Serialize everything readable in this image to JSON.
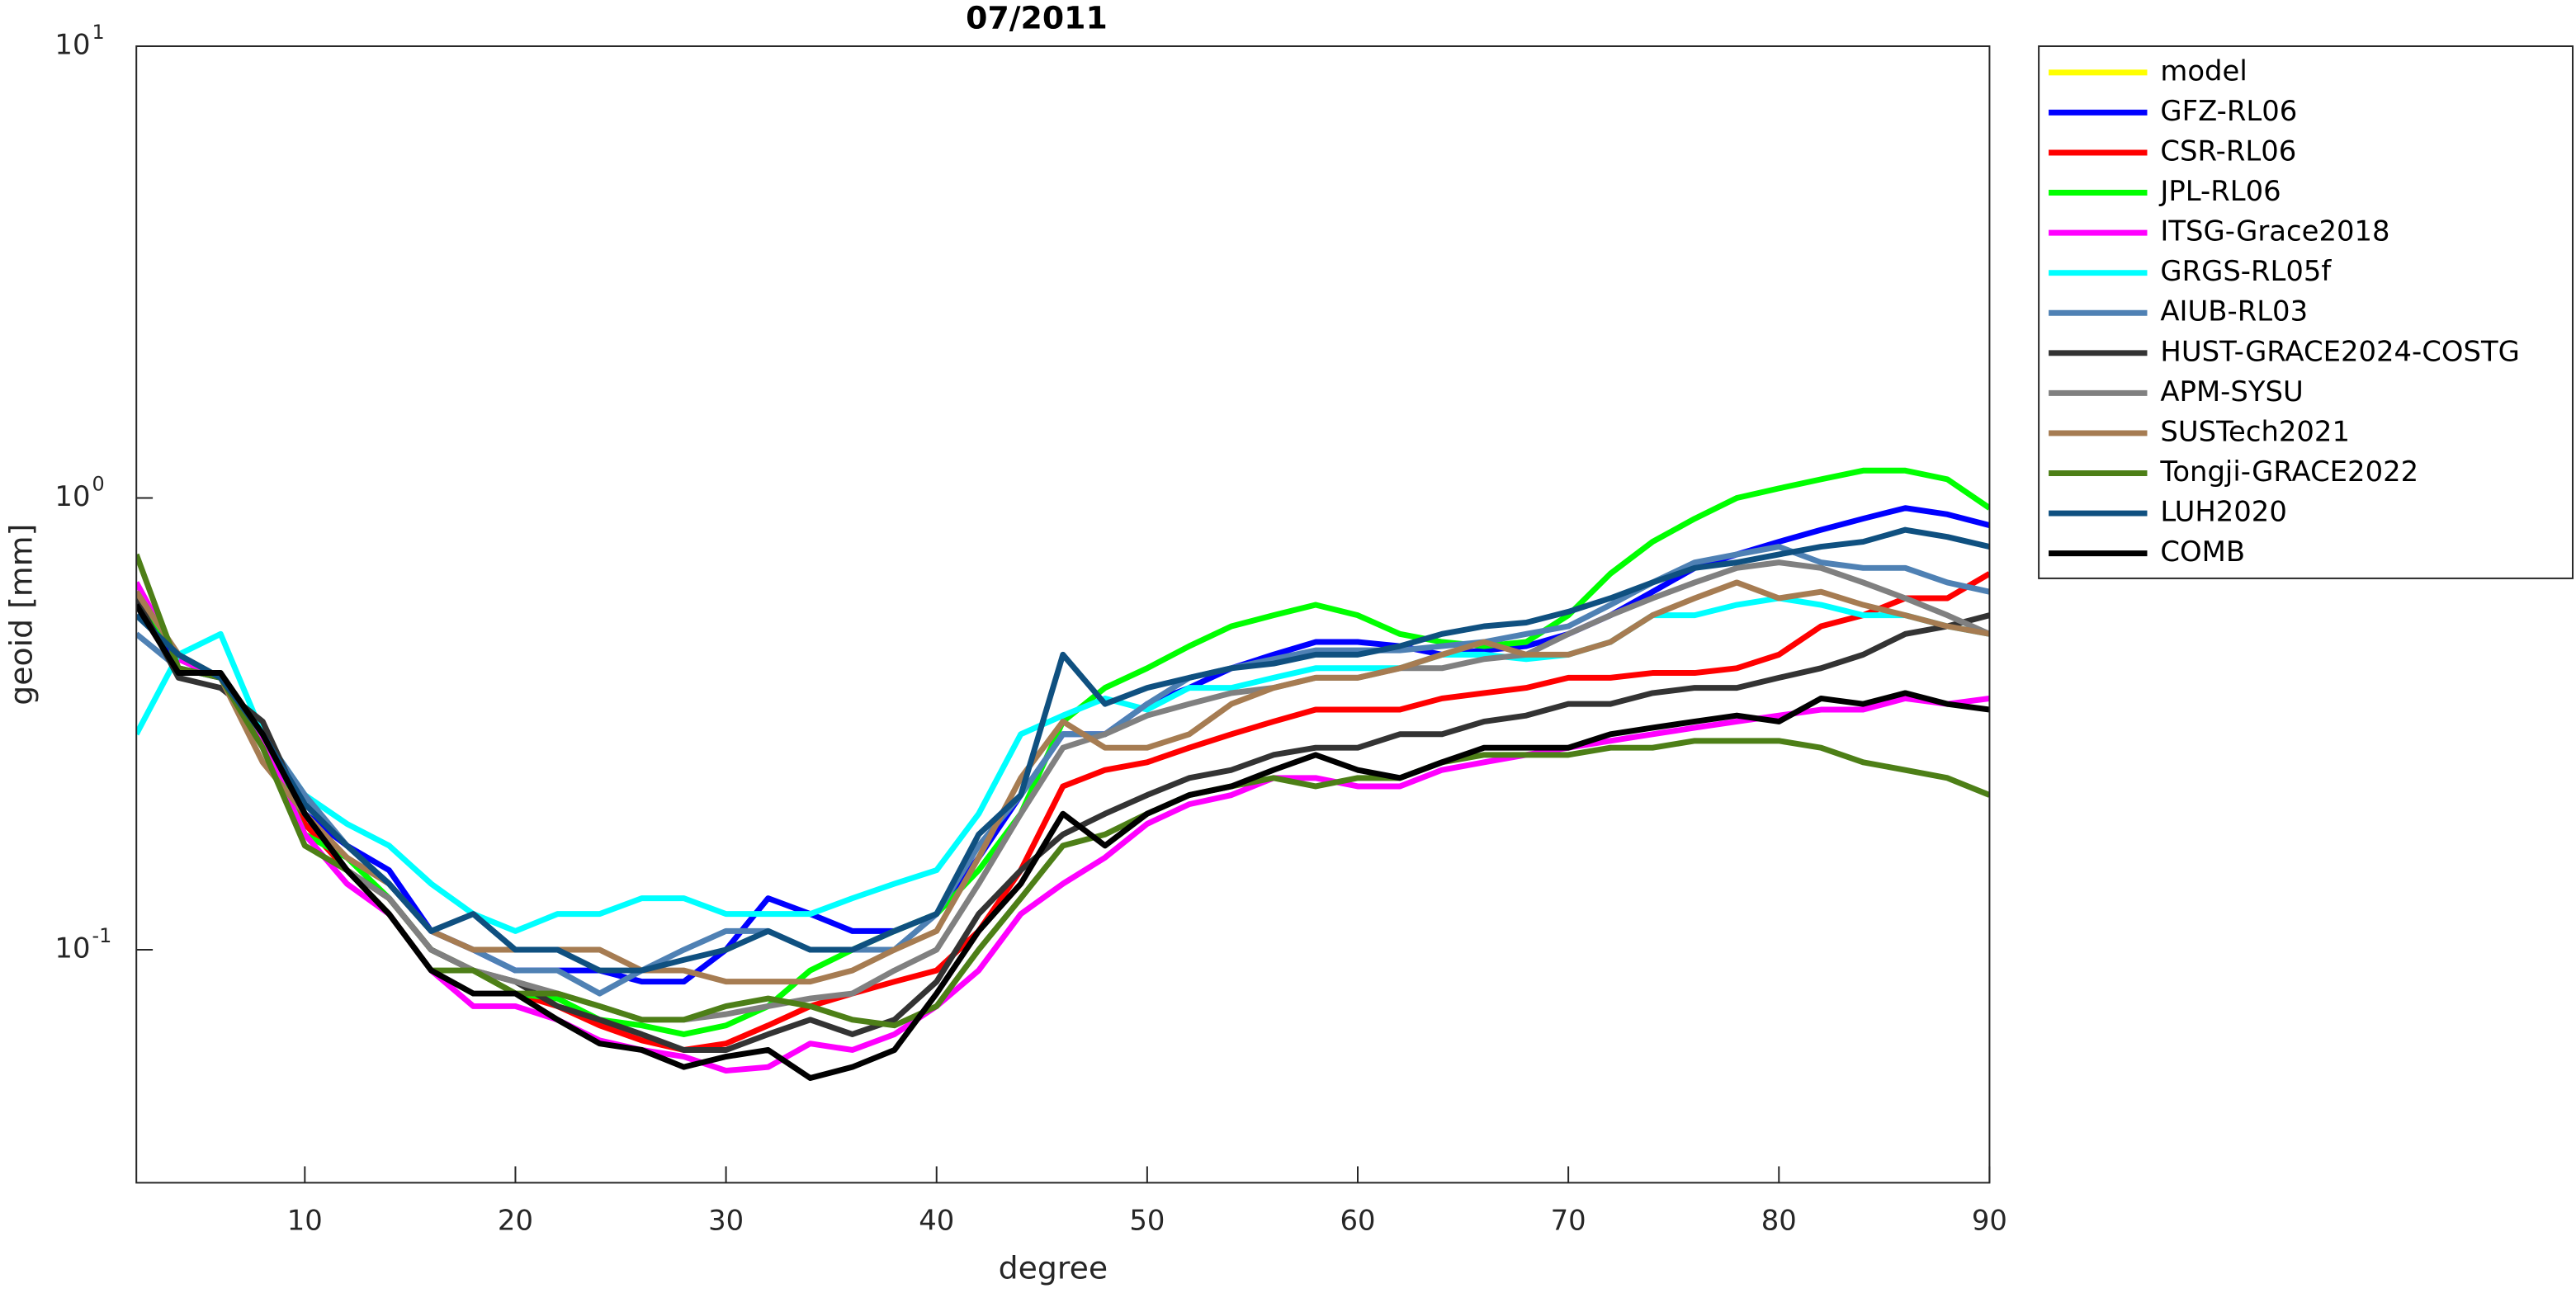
{
  "chart_data": {
    "type": "line",
    "title": "07/2011",
    "xlabel": "degree",
    "ylabel": "geoid [mm]",
    "yscale": "log",
    "legend": "outside-right",
    "grid": false,
    "xlim": [
      2,
      90
    ],
    "xticks": [
      10,
      20,
      30,
      40,
      50,
      60,
      70,
      80,
      90
    ],
    "ylim": [
      0.0305,
      10
    ],
    "yticks": [
      {
        "value": 0.1,
        "label": "10",
        "exponent": "-1"
      },
      {
        "value": 1,
        "label": "10",
        "exponent": "0"
      },
      {
        "value": 10,
        "label": "10",
        "exponent": "1"
      }
    ],
    "x": [
      2,
      4,
      6,
      8,
      10,
      12,
      14,
      16,
      18,
      20,
      22,
      24,
      26,
      28,
      30,
      32,
      34,
      36,
      38,
      40,
      42,
      44,
      46,
      48,
      50,
      52,
      54,
      56,
      58,
      60,
      62,
      64,
      66,
      68,
      70,
      72,
      74,
      76,
      78,
      80,
      82,
      84,
      86,
      88,
      90
    ],
    "series": [
      {
        "name": "model",
        "color": "#ffff00",
        "values": [
          null,
          null,
          null,
          null,
          null,
          null,
          null,
          null,
          null,
          null,
          null,
          null,
          null,
          null,
          null,
          null,
          null,
          null,
          null,
          null,
          null,
          null,
          null,
          null,
          null,
          null,
          null,
          null,
          null,
          null,
          null,
          null,
          null,
          null,
          null,
          null,
          null,
          null,
          null,
          null,
          null,
          null,
          null,
          null,
          null
        ]
      },
      {
        "name": "GFZ-RL06",
        "color": "#0000ff",
        "values": [
          0.6,
          0.42,
          0.4,
          0.3,
          0.2,
          0.17,
          0.15,
          0.11,
          0.1,
          0.09,
          0.09,
          0.09,
          0.085,
          0.085,
          0.1,
          0.13,
          0.12,
          0.11,
          0.11,
          0.12,
          0.16,
          0.22,
          0.3,
          0.3,
          0.35,
          0.38,
          0.42,
          0.45,
          0.48,
          0.48,
          0.47,
          0.45,
          0.46,
          0.47,
          0.5,
          0.55,
          0.62,
          0.7,
          0.75,
          0.8,
          0.85,
          0.9,
          0.95,
          0.92,
          0.87
        ]
      },
      {
        "name": "CSR-RL06",
        "color": "#ff0000",
        "values": [
          0.62,
          0.44,
          0.4,
          0.3,
          0.19,
          0.15,
          0.13,
          0.1,
          0.09,
          0.08,
          0.075,
          0.068,
          0.063,
          0.06,
          0.062,
          0.068,
          0.075,
          0.08,
          0.085,
          0.09,
          0.11,
          0.15,
          0.23,
          0.25,
          0.26,
          0.28,
          0.3,
          0.32,
          0.34,
          0.34,
          0.34,
          0.36,
          0.37,
          0.38,
          0.4,
          0.4,
          0.41,
          0.41,
          0.42,
          0.45,
          0.52,
          0.55,
          0.6,
          0.6,
          0.68
        ]
      },
      {
        "name": "JPL-RL06",
        "color": "#00ff00",
        "values": [
          0.62,
          0.44,
          0.4,
          0.3,
          0.18,
          0.16,
          0.13,
          0.1,
          0.09,
          0.08,
          0.078,
          0.07,
          0.068,
          0.065,
          0.068,
          0.075,
          0.09,
          0.1,
          0.11,
          0.12,
          0.15,
          0.2,
          0.32,
          0.38,
          0.42,
          0.47,
          0.52,
          0.55,
          0.58,
          0.55,
          0.5,
          0.48,
          0.47,
          0.48,
          0.55,
          0.68,
          0.8,
          0.9,
          1.0,
          1.05,
          1.1,
          1.15,
          1.15,
          1.1,
          0.95
        ]
      },
      {
        "name": "ITSG-Grace2018",
        "color": "#ff00ff",
        "values": [
          0.65,
          0.44,
          0.4,
          0.29,
          0.18,
          0.14,
          0.12,
          0.09,
          0.075,
          0.075,
          0.07,
          0.063,
          0.06,
          0.058,
          0.054,
          0.055,
          0.062,
          0.06,
          0.065,
          0.075,
          0.09,
          0.12,
          0.14,
          0.16,
          0.19,
          0.21,
          0.22,
          0.24,
          0.24,
          0.23,
          0.23,
          0.25,
          0.26,
          0.27,
          0.28,
          0.29,
          0.3,
          0.31,
          0.32,
          0.33,
          0.34,
          0.34,
          0.36,
          0.35,
          0.36
        ]
      },
      {
        "name": "GRGS-RL05f",
        "color": "#00ffff",
        "values": [
          0.3,
          0.45,
          0.5,
          0.3,
          0.22,
          0.19,
          0.17,
          0.14,
          0.12,
          0.11,
          0.12,
          0.12,
          0.13,
          0.13,
          0.12,
          0.12,
          0.12,
          0.13,
          0.14,
          0.15,
          0.2,
          0.3,
          0.33,
          0.36,
          0.34,
          0.38,
          0.38,
          0.4,
          0.42,
          0.42,
          0.42,
          0.45,
          0.45,
          0.44,
          0.45,
          0.48,
          0.55,
          0.55,
          0.58,
          0.6,
          0.58,
          0.55,
          0.55,
          0.52,
          0.5
        ]
      },
      {
        "name": "AIUB-RL03",
        "color": "#4f81b4",
        "values": [
          0.5,
          0.42,
          0.4,
          0.3,
          0.22,
          0.17,
          0.14,
          0.11,
          0.1,
          0.09,
          0.09,
          0.08,
          0.09,
          0.1,
          0.11,
          0.11,
          0.1,
          0.1,
          0.1,
          0.12,
          0.17,
          0.22,
          0.3,
          0.3,
          0.35,
          0.4,
          0.42,
          0.44,
          0.46,
          0.46,
          0.46,
          0.47,
          0.48,
          0.5,
          0.52,
          0.58,
          0.65,
          0.72,
          0.75,
          0.78,
          0.72,
          0.7,
          0.7,
          0.65,
          0.62
        ]
      },
      {
        "name": "HUST-GRACE2024-COSTG",
        "color": "#333333",
        "values": [
          0.6,
          0.4,
          0.38,
          0.32,
          0.2,
          0.15,
          0.13,
          0.1,
          0.09,
          0.085,
          0.075,
          0.07,
          0.065,
          0.06,
          0.06,
          0.065,
          0.07,
          0.065,
          0.07,
          0.085,
          0.12,
          0.15,
          0.18,
          0.2,
          0.22,
          0.24,
          0.25,
          0.27,
          0.28,
          0.28,
          0.3,
          0.3,
          0.32,
          0.33,
          0.35,
          0.35,
          0.37,
          0.38,
          0.38,
          0.4,
          0.42,
          0.45,
          0.5,
          0.52,
          0.55
        ]
      },
      {
        "name": "APM-SYSU",
        "color": "#808080",
        "values": [
          0.62,
          0.45,
          0.4,
          0.3,
          0.2,
          0.15,
          0.13,
          0.1,
          0.09,
          0.085,
          0.08,
          0.075,
          0.07,
          0.07,
          0.072,
          0.075,
          0.078,
          0.08,
          0.09,
          0.1,
          0.14,
          0.2,
          0.28,
          0.3,
          0.33,
          0.35,
          0.37,
          0.38,
          0.4,
          0.4,
          0.42,
          0.42,
          0.44,
          0.45,
          0.5,
          0.55,
          0.6,
          0.65,
          0.7,
          0.72,
          0.7,
          0.65,
          0.6,
          0.55,
          0.5
        ]
      },
      {
        "name": "SUSTech2021",
        "color": "#a67c52",
        "values": [
          0.62,
          0.45,
          0.4,
          0.26,
          0.2,
          0.16,
          0.14,
          0.11,
          0.1,
          0.1,
          0.1,
          0.1,
          0.09,
          0.09,
          0.085,
          0.085,
          0.085,
          0.09,
          0.1,
          0.11,
          0.16,
          0.24,
          0.32,
          0.28,
          0.28,
          0.3,
          0.35,
          0.38,
          0.4,
          0.4,
          0.42,
          0.45,
          0.48,
          0.45,
          0.45,
          0.48,
          0.55,
          0.6,
          0.65,
          0.6,
          0.62,
          0.58,
          0.55,
          0.52,
          0.5
        ]
      },
      {
        "name": "Tongji-GRACE2022",
        "color": "#4d7f17",
        "values": [
          0.75,
          0.42,
          0.4,
          0.28,
          0.17,
          0.15,
          0.12,
          0.09,
          0.09,
          0.08,
          0.08,
          0.075,
          0.07,
          0.07,
          0.075,
          0.078,
          0.075,
          0.07,
          0.068,
          0.075,
          0.1,
          0.13,
          0.17,
          0.18,
          0.2,
          0.22,
          0.23,
          0.24,
          0.23,
          0.24,
          0.24,
          0.26,
          0.27,
          0.27,
          0.27,
          0.28,
          0.28,
          0.29,
          0.29,
          0.29,
          0.28,
          0.26,
          0.25,
          0.24,
          0.22
        ]
      },
      {
        "name": "LUH2020",
        "color": "#0f5080",
        "values": [
          0.55,
          0.45,
          0.4,
          0.3,
          0.21,
          0.17,
          0.14,
          0.11,
          0.12,
          0.1,
          0.1,
          0.09,
          0.09,
          0.095,
          0.1,
          0.11,
          0.1,
          0.1,
          0.11,
          0.12,
          0.18,
          0.22,
          0.45,
          0.35,
          0.38,
          0.4,
          0.42,
          0.43,
          0.45,
          0.45,
          0.47,
          0.5,
          0.52,
          0.53,
          0.56,
          0.6,
          0.65,
          0.7,
          0.72,
          0.75,
          0.78,
          0.8,
          0.85,
          0.82,
          0.78
        ]
      },
      {
        "name": "COMB",
        "color": "#000000",
        "values": [
          0.58,
          0.41,
          0.41,
          0.3,
          0.2,
          0.15,
          0.12,
          0.09,
          0.08,
          0.08,
          0.07,
          0.062,
          0.06,
          0.055,
          0.058,
          0.06,
          0.052,
          0.055,
          0.06,
          0.08,
          0.11,
          0.14,
          0.2,
          0.17,
          0.2,
          0.22,
          0.23,
          0.25,
          0.27,
          0.25,
          0.24,
          0.26,
          0.28,
          0.28,
          0.28,
          0.3,
          0.31,
          0.32,
          0.33,
          0.32,
          0.36,
          0.35,
          0.37,
          0.35,
          0.34
        ]
      }
    ]
  }
}
